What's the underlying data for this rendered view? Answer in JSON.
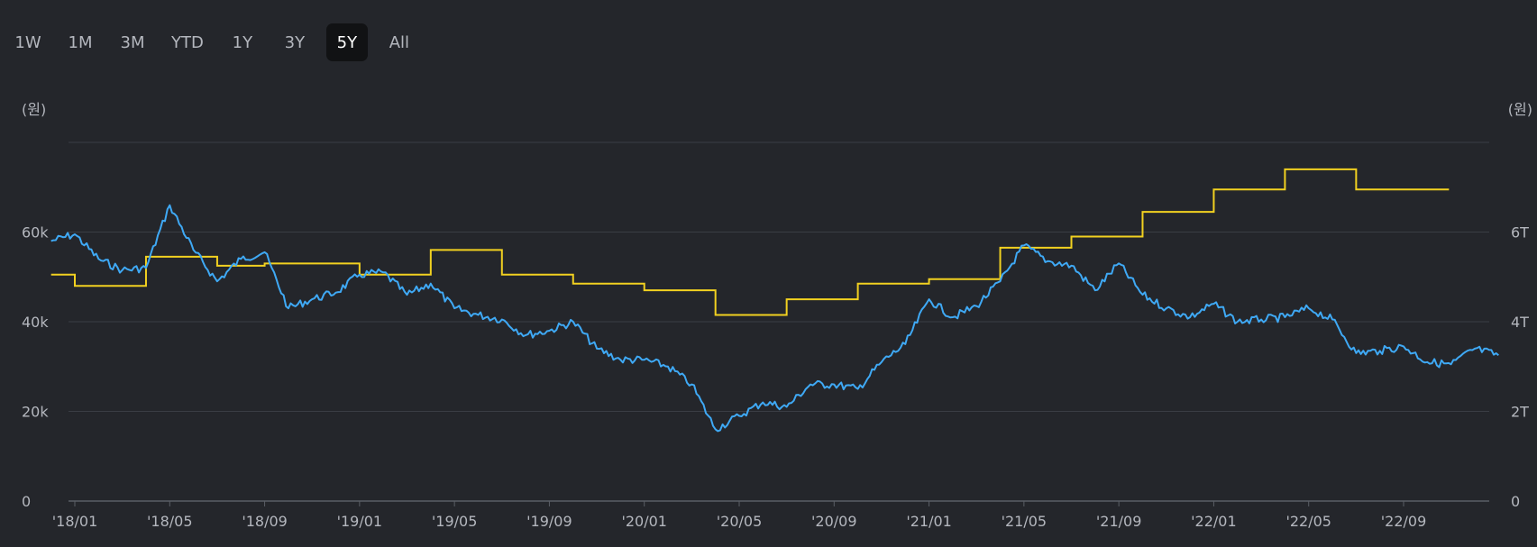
{
  "range_selector": {
    "options": [
      "1W",
      "1M",
      "3M",
      "YTD",
      "1Y",
      "3Y",
      "5Y",
      "All"
    ],
    "selected": "5Y"
  },
  "colors": {
    "background": "#24262b",
    "grid": "#3a3d44",
    "axis": "#5a5e66",
    "price_line": "#3fa9f5",
    "step_line": "#f2d120"
  },
  "chart_data": {
    "type": "line",
    "title": "",
    "left_axis": {
      "unit_label": "(원)",
      "ticks": [
        "0",
        "20k",
        "40k",
        "60k"
      ],
      "ylim": [
        0,
        80000
      ]
    },
    "right_axis": {
      "unit_label": "(원)",
      "ticks": [
        "0",
        "2T",
        "4T",
        "6T"
      ],
      "ylim": [
        0,
        8000000000000
      ]
    },
    "x_ticks": [
      "'18/01",
      "'18/05",
      "'18/09",
      "'19/01",
      "'19/05",
      "'19/09",
      "'20/01",
      "'20/05",
      "'20/09",
      "'21/01",
      "'21/05",
      "'21/09",
      "'22/01",
      "'22/05",
      "'22/09"
    ],
    "grid": true,
    "series": [
      {
        "axis": "left",
        "color": "#3fa9f5",
        "points": [
          [
            "'17/12",
            58000
          ],
          [
            "'18/01",
            59500
          ],
          [
            "'18/02",
            54000
          ],
          [
            "'18/03",
            51500
          ],
          [
            "'18/04",
            52000
          ],
          [
            "'18/05",
            66000
          ],
          [
            "'18/06",
            56000
          ],
          [
            "'18/07",
            49000
          ],
          [
            "'18/08",
            54000
          ],
          [
            "'18/09",
            55500
          ],
          [
            "'18/10",
            43000
          ],
          [
            "'18/11",
            45000
          ],
          [
            "'18/12",
            46500
          ],
          [
            "'19/01",
            50500
          ],
          [
            "'19/02",
            51000
          ],
          [
            "'19/03",
            46000
          ],
          [
            "'19/04",
            48500
          ],
          [
            "'19/05",
            43000
          ],
          [
            "'19/06",
            41500
          ],
          [
            "'19/07",
            40500
          ],
          [
            "'19/08",
            37000
          ],
          [
            "'19/09",
            38000
          ],
          [
            "'19/10",
            40000
          ],
          [
            "'19/11",
            34000
          ],
          [
            "'19/12",
            31500
          ],
          [
            "'20/01",
            31500
          ],
          [
            "'20/02",
            30000
          ],
          [
            "'20/03",
            26000
          ],
          [
            "'20/04",
            16000
          ],
          [
            "'20/05",
            19000
          ],
          [
            "'20/06",
            22000
          ],
          [
            "'20/07",
            21000
          ],
          [
            "'20/08",
            26000
          ],
          [
            "'20/09",
            26000
          ],
          [
            "'20/10",
            25000
          ],
          [
            "'20/11",
            31000
          ],
          [
            "'20/12",
            35000
          ],
          [
            "'21/01",
            45000
          ],
          [
            "'21/02",
            41000
          ],
          [
            "'21/03",
            43500
          ],
          [
            "'21/04",
            49000
          ],
          [
            "'21/05",
            57000
          ],
          [
            "'21/06",
            53500
          ],
          [
            "'21/07",
            52500
          ],
          [
            "'21/08",
            47000
          ],
          [
            "'21/09",
            53000
          ],
          [
            "'21/10",
            46000
          ],
          [
            "'21/11",
            43000
          ],
          [
            "'21/12",
            41000
          ],
          [
            "'22/01",
            44000
          ],
          [
            "'22/02",
            40000
          ],
          [
            "'22/03",
            40500
          ],
          [
            "'22/04",
            41000
          ],
          [
            "'22/05",
            43000
          ],
          [
            "'22/06",
            40500
          ],
          [
            "'22/07",
            33000
          ],
          [
            "'22/08",
            33500
          ],
          [
            "'22/09",
            34500
          ],
          [
            "'22/10",
            31000
          ],
          [
            "'22/11",
            30500
          ],
          [
            "'22/12",
            34000
          ],
          [
            "'23/01",
            32500
          ]
        ]
      },
      {
        "axis": "right",
        "color": "#f2d120",
        "step": true,
        "points": [
          [
            "'17/12",
            5050000000000
          ],
          [
            "'18/01",
            4800000000000
          ],
          [
            "'18/04",
            5450000000000
          ],
          [
            "'18/07",
            5250000000000
          ],
          [
            "'18/09",
            5300000000000
          ],
          [
            "'19/01",
            5050000000000
          ],
          [
            "'19/04",
            5600000000000
          ],
          [
            "'19/07",
            5050000000000
          ],
          [
            "'19/10",
            4850000000000
          ],
          [
            "'20/01",
            4700000000000
          ],
          [
            "'20/04",
            4150000000000
          ],
          [
            "'20/07",
            4500000000000
          ],
          [
            "'20/10",
            4850000000000
          ],
          [
            "'21/01",
            4950000000000
          ],
          [
            "'21/04",
            5650000000000
          ],
          [
            "'21/07",
            5900000000000
          ],
          [
            "'21/10",
            6450000000000
          ],
          [
            "'22/01",
            6950000000000
          ],
          [
            "'22/04",
            7400000000000
          ],
          [
            "'22/07",
            6950000000000
          ],
          [
            "'22/10",
            6950000000000
          ]
        ]
      }
    ]
  }
}
